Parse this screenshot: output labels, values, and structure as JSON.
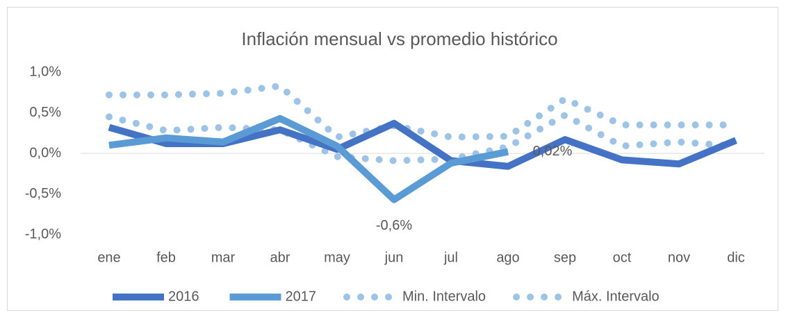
{
  "chart_data": {
    "type": "line",
    "title": "Inflación mensual vs promedio histórico",
    "categories": [
      "ene",
      "feb",
      "mar",
      "abr",
      "may",
      "jun",
      "jul",
      "ago",
      "sep",
      "oct",
      "nov",
      "dic"
    ],
    "series": [
      {
        "name": "2016",
        "color": "#4472c4",
        "style": "solid",
        "values": [
          0.32,
          0.12,
          0.12,
          0.29,
          0.05,
          0.37,
          -0.09,
          -0.16,
          0.17,
          -0.08,
          -0.13,
          0.16
        ]
      },
      {
        "name": "2017",
        "color": "#5b9bd5",
        "style": "solid",
        "values": [
          0.1,
          0.19,
          0.14,
          0.43,
          0.09,
          -0.57,
          -0.12,
          0.02,
          null,
          null,
          null,
          null
        ],
        "value_labels": [
          null,
          null,
          null,
          null,
          null,
          "-0,6%",
          null,
          "0,02%",
          null,
          null,
          null,
          null
        ]
      },
      {
        "name": "Min. Intervalo",
        "color": "#9dc3e6",
        "style": "dotted",
        "values": [
          0.45,
          0.28,
          0.32,
          0.29,
          -0.04,
          -0.09,
          -0.07,
          0.08,
          0.47,
          0.09,
          0.14,
          0.09
        ]
      },
      {
        "name": "Máx. Intervalo",
        "color": "#9dc3e6",
        "style": "dotted",
        "values": [
          0.72,
          0.72,
          0.74,
          0.83,
          0.2,
          0.34,
          0.2,
          0.21,
          0.67,
          0.35,
          0.35,
          0.35
        ]
      }
    ],
    "ylim": [
      -1.0,
      1.0
    ],
    "yticks": [
      {
        "value": -1.0,
        "label": "-1,0%"
      },
      {
        "value": -0.5,
        "label": "-0,5%"
      },
      {
        "value": 0,
        "label": "0,0%"
      },
      {
        "value": 0.5,
        "label": "0,5%"
      },
      {
        "value": 1.0,
        "label": "1,0%"
      }
    ],
    "legend": "bottom"
  }
}
